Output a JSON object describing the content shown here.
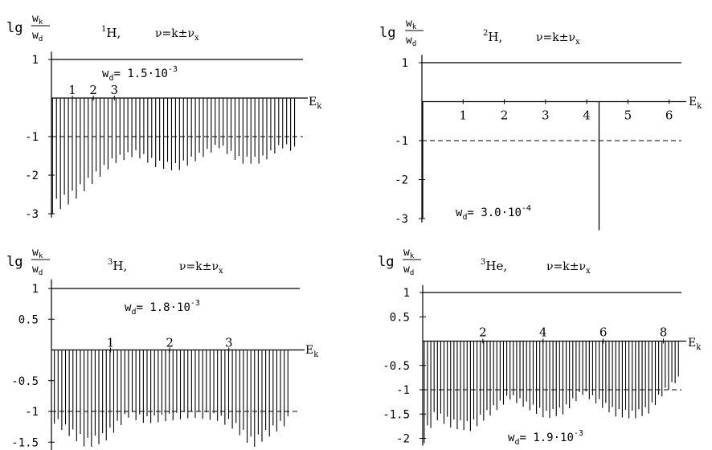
{
  "chart_data": [
    {
      "type": "bar",
      "ylabel_prefix": "lg",
      "ylabel_num": "w",
      "ylabel_num_sub": "k",
      "ylabel_den": "w",
      "ylabel_den_sub": "d",
      "nucleus_mass": "1",
      "nucleus_symbol": "H,",
      "nu_formula": "ν=k±ν",
      "nu_sub": "x",
      "wd_label": "w",
      "wd_sub": "d",
      "wd_text": "= 1.5·10",
      "wd_exp": "-3",
      "xlabel": "E",
      "xlabel_sub": "k",
      "yticks": [
        "1",
        "-1",
        "-2",
        "-3"
      ],
      "ytick_values": [
        1,
        -1,
        -2,
        -3
      ],
      "ylim": [
        -3.1,
        1.2
      ],
      "xticks": [
        "1",
        "2",
        "3"
      ],
      "xtick_values": [
        1,
        2,
        3
      ],
      "xlim": [
        0,
        12
      ],
      "bars": {
        "count": 62,
        "x_range": [
          0.05,
          11.6
        ],
        "envelope_x": [
          0.05,
          1.0,
          2.0,
          3.0,
          4.0,
          5.0,
          6.0,
          7.0,
          8.0,
          9.0,
          10.0,
          11.0,
          11.6
        ],
        "envelope_y": [
          -3.0,
          -2.7,
          -2.2,
          -1.7,
          -1.5,
          -1.8,
          -1.9,
          -1.6,
          -1.3,
          -1.7,
          -1.7,
          -1.3,
          -1.4
        ]
      },
      "reference_line": {
        "y": -1,
        "style": "dashed"
      },
      "top_line": {
        "y": 1,
        "x_start": 0
      }
    },
    {
      "type": "bar",
      "ylabel_prefix": "lg",
      "ylabel_num": "w",
      "ylabel_num_sub": "k",
      "ylabel_den": "w",
      "ylabel_den_sub": "d",
      "nucleus_mass": "2",
      "nucleus_symbol": "H,",
      "nu_formula": "ν=k±ν",
      "nu_sub": "x",
      "wd_label": "w",
      "wd_sub": "d",
      "wd_text": "= 3.0·10",
      "wd_exp": "-4",
      "xlabel": "E",
      "xlabel_sub": "k",
      "yticks": [
        "1",
        "-1",
        "-2",
        "-3"
      ],
      "ytick_values": [
        1,
        -1,
        -2,
        -3
      ],
      "ylim": [
        -3.1,
        1.2
      ],
      "xticks": [
        "1",
        "2",
        "3",
        "4",
        "5",
        "6"
      ],
      "xtick_values": [
        1,
        2,
        3,
        4,
        5,
        6
      ],
      "xlim": [
        0,
        6.3
      ],
      "spikes": [
        {
          "x": 0.0,
          "y": -3.0
        },
        {
          "x": 4.3,
          "y": -3.3
        }
      ],
      "reference_line": {
        "y": -1,
        "style": "dashed"
      },
      "top_line": {
        "y": 1,
        "x_start": 0
      }
    },
    {
      "type": "bar",
      "ylabel_prefix": "lg",
      "ylabel_num": "w",
      "ylabel_num_sub": "k",
      "ylabel_den": "w",
      "ylabel_den_sub": "d",
      "nucleus_mass": "3",
      "nucleus_symbol": "H,",
      "nu_formula": "ν=k±ν",
      "nu_sub": "x",
      "wd_label": "w",
      "wd_sub": "d",
      "wd_text": "= 1.8·10",
      "wd_exp": "-3",
      "xlabel": "E",
      "xlabel_sub": "k",
      "yticks": [
        "1",
        "0.5",
        "-0.5",
        "-1",
        "-1.5"
      ],
      "ytick_values": [
        1,
        0.5,
        -0.5,
        -1,
        -1.5
      ],
      "ylim": [
        -1.7,
        1.15
      ],
      "xticks": [
        "1",
        "2",
        "3"
      ],
      "xtick_values": [
        1,
        2,
        3
      ],
      "xlim": [
        0,
        4.2
      ],
      "bars": {
        "count": 64,
        "x_range": [
          0.05,
          4.0
        ],
        "envelope_x": [
          0.05,
          0.3,
          0.6,
          0.9,
          1.3,
          1.6,
          2.0,
          2.4,
          2.8,
          3.1,
          3.4,
          3.7,
          4.0
        ],
        "envelope_y": [
          -1.2,
          -1.4,
          -1.6,
          -1.5,
          -1.1,
          -1.2,
          -1.15,
          -1.1,
          -1.15,
          -1.3,
          -1.6,
          -1.4,
          -1.2
        ]
      },
      "reference_line": {
        "y": -1,
        "style": "dashed"
      },
      "top_line": {
        "y": 1,
        "x_start": 0
      }
    },
    {
      "type": "bar",
      "ylabel_prefix": "lg",
      "ylabel_num": "w",
      "ylabel_num_sub": "k",
      "ylabel_den": "w",
      "ylabel_den_sub": "d",
      "nucleus_mass": "3",
      "nucleus_symbol": "He,",
      "nu_formula": "ν=k±ν",
      "nu_sub": "x",
      "wd_label": "w",
      "wd_sub": "d",
      "wd_text": "= 1.9·10",
      "wd_exp": "-3",
      "xlabel": "E",
      "xlabel_sub": "k",
      "yticks": [
        "1",
        "0.5",
        "-0.5",
        "-1",
        "-1.5",
        "-2"
      ],
      "ytick_values": [
        1,
        0.5,
        -0.5,
        -1,
        -1.5,
        -2
      ],
      "ylim": [
        -2.15,
        1.15
      ],
      "xticks": [
        "2",
        "4",
        "6",
        "8"
      ],
      "xtick_values": [
        2,
        4,
        6,
        8
      ],
      "xlim": [
        0,
        8.6
      ],
      "bars": {
        "count": 78,
        "x_range": [
          0.05,
          8.5
        ],
        "envelope_x": [
          0.05,
          0.4,
          1.0,
          1.6,
          2.3,
          2.9,
          3.5,
          4.1,
          4.7,
          5.3,
          5.8,
          6.4,
          7.0,
          7.5,
          8.0,
          8.5
        ],
        "envelope_y": [
          -2.1,
          -1.6,
          -1.8,
          -1.85,
          -1.5,
          -1.2,
          -1.4,
          -1.6,
          -1.5,
          -1.1,
          -1.3,
          -1.55,
          -1.6,
          -1.5,
          -1.1,
          -0.8
        ]
      },
      "reference_line": {
        "y": -1,
        "style": "dashed"
      },
      "top_line": {
        "y": 1,
        "x_start": 0
      }
    }
  ]
}
